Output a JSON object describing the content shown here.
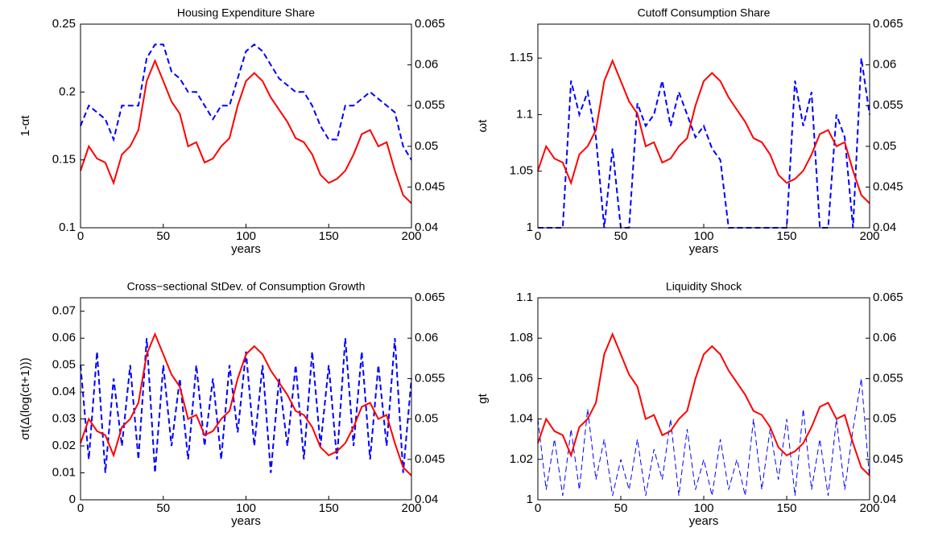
{
  "chart_data": [
    {
      "type": "line",
      "title": "Housing Expenditure Share",
      "xlabel": "years",
      "ylabel": "1-αt",
      "x": [
        0,
        5,
        10,
        15,
        20,
        25,
        30,
        35,
        40,
        45,
        50,
        55,
        60,
        65,
        70,
        75,
        80,
        85,
        90,
        95,
        100,
        105,
        110,
        115,
        120,
        125,
        130,
        135,
        140,
        145,
        150,
        155,
        160,
        165,
        170,
        175,
        180,
        185,
        190,
        195,
        200
      ],
      "xlim": [
        0,
        200
      ],
      "xticks": [
        0,
        50,
        100,
        150,
        200
      ],
      "ylim": [
        0.1,
        0.25
      ],
      "yticks": [
        0.1,
        0.15,
        0.2,
        0.25
      ],
      "y2lim": [
        0.04,
        0.065
      ],
      "y2ticks": [
        0.04,
        0.045,
        0.05,
        0.055,
        0.06,
        0.065
      ],
      "series": [
        {
          "color": "#0000ff",
          "dashed": true,
          "values": [
            0.175,
            0.19,
            0.185,
            0.18,
            0.165,
            0.19,
            0.19,
            0.19,
            0.225,
            0.235,
            0.235,
            0.215,
            0.21,
            0.2,
            0.2,
            0.19,
            0.18,
            0.19,
            0.19,
            0.21,
            0.23,
            0.235,
            0.23,
            0.22,
            0.21,
            0.205,
            0.2,
            0.2,
            0.19,
            0.175,
            0.165,
            0.165,
            0.19,
            0.19,
            0.195,
            0.2,
            0.195,
            0.19,
            0.185,
            0.16,
            0.15
          ]
        },
        {
          "color": "#ff0000",
          "dashed": false,
          "axis": "y2",
          "values": [
            0.047,
            0.05,
            0.0485,
            0.048,
            0.0455,
            0.049,
            0.05,
            0.052,
            0.058,
            0.0605,
            0.058,
            0.0555,
            0.054,
            0.05,
            0.0505,
            0.048,
            0.0485,
            0.05,
            0.051,
            0.055,
            0.058,
            0.059,
            0.058,
            0.056,
            0.0545,
            0.053,
            0.051,
            0.0505,
            0.049,
            0.0465,
            0.0455,
            0.046,
            0.047,
            0.049,
            0.0515,
            0.052,
            0.05,
            0.0505,
            0.047,
            0.044,
            0.043
          ]
        }
      ]
    },
    {
      "type": "line",
      "title": "Cutoff Consumption Share",
      "xlabel": "years",
      "ylabel": "ωt",
      "x": [
        0,
        5,
        10,
        15,
        20,
        25,
        30,
        35,
        40,
        45,
        50,
        55,
        60,
        65,
        70,
        75,
        80,
        85,
        90,
        95,
        100,
        105,
        110,
        115,
        120,
        125,
        130,
        135,
        140,
        145,
        150,
        155,
        160,
        165,
        170,
        175,
        180,
        185,
        190,
        195,
        200
      ],
      "xlim": [
        0,
        200
      ],
      "xticks": [
        0,
        50,
        100,
        150,
        200
      ],
      "ylim": [
        1,
        1.18
      ],
      "yticks": [
        1,
        1.05,
        1.1,
        1.15
      ],
      "y2lim": [
        0.04,
        0.065
      ],
      "y2ticks": [
        0.04,
        0.045,
        0.05,
        0.055,
        0.06,
        0.065
      ],
      "series": [
        {
          "color": "#0000ff",
          "dashed": true,
          "values": [
            1,
            1,
            1,
            1,
            1.13,
            1.1,
            1.12,
            1.08,
            1,
            1.07,
            1,
            1,
            1.11,
            1.09,
            1.1,
            1.13,
            1.09,
            1.12,
            1.1,
            1.08,
            1.09,
            1.07,
            1.06,
            1,
            1,
            1,
            1,
            1,
            1,
            1,
            1,
            1.13,
            1.09,
            1.12,
            1,
            1,
            1.1,
            1.08,
            1,
            1.15,
            1.1
          ]
        },
        {
          "color": "#ff0000",
          "dashed": false,
          "axis": "y2",
          "values": [
            0.047,
            0.05,
            0.0485,
            0.048,
            0.0455,
            0.049,
            0.05,
            0.052,
            0.058,
            0.0605,
            0.058,
            0.0555,
            0.054,
            0.05,
            0.0505,
            0.048,
            0.0485,
            0.05,
            0.051,
            0.055,
            0.058,
            0.059,
            0.058,
            0.056,
            0.0545,
            0.053,
            0.051,
            0.0505,
            0.049,
            0.0465,
            0.0455,
            0.046,
            0.047,
            0.049,
            0.0515,
            0.052,
            0.05,
            0.0505,
            0.047,
            0.044,
            0.043
          ]
        }
      ]
    },
    {
      "type": "line",
      "title": "Cross−sectional StDev. of Consumption Growth",
      "xlabel": "years",
      "ylabel": "σt(Δ(log(ct+1)))",
      "x": [
        0,
        5,
        10,
        15,
        20,
        25,
        30,
        35,
        40,
        45,
        50,
        55,
        60,
        65,
        70,
        75,
        80,
        85,
        90,
        95,
        100,
        105,
        110,
        115,
        120,
        125,
        130,
        135,
        140,
        145,
        150,
        155,
        160,
        165,
        170,
        175,
        180,
        185,
        190,
        195,
        200
      ],
      "xlim": [
        0,
        200
      ],
      "xticks": [
        0,
        50,
        100,
        150,
        200
      ],
      "ylim": [
        0,
        0.075
      ],
      "yticks": [
        0,
        0.01,
        0.02,
        0.03,
        0.04,
        0.05,
        0.06,
        0.07
      ],
      "y2lim": [
        0.04,
        0.065
      ],
      "y2ticks": [
        0.04,
        0.045,
        0.05,
        0.055,
        0.06,
        0.065
      ],
      "series": [
        {
          "color": "#0000ff",
          "dashed": true,
          "values": [
            0.05,
            0.015,
            0.055,
            0.01,
            0.045,
            0.02,
            0.05,
            0.015,
            0.06,
            0.01,
            0.05,
            0.02,
            0.045,
            0.015,
            0.05,
            0.02,
            0.045,
            0.015,
            0.05,
            0.025,
            0.055,
            0.02,
            0.05,
            0.01,
            0.045,
            0.02,
            0.05,
            0.015,
            0.055,
            0.02,
            0.05,
            0.015,
            0.06,
            0.02,
            0.055,
            0.015,
            0.05,
            0.02,
            0.06,
            0.01,
            0.045
          ]
        },
        {
          "color": "#ff0000",
          "dashed": false,
          "axis": "y2",
          "values": [
            0.047,
            0.05,
            0.0485,
            0.048,
            0.0455,
            0.049,
            0.05,
            0.052,
            0.058,
            0.0605,
            0.058,
            0.0555,
            0.054,
            0.05,
            0.0505,
            0.048,
            0.0485,
            0.05,
            0.051,
            0.055,
            0.058,
            0.059,
            0.058,
            0.056,
            0.0545,
            0.053,
            0.051,
            0.0505,
            0.049,
            0.0465,
            0.0455,
            0.046,
            0.047,
            0.049,
            0.0515,
            0.052,
            0.05,
            0.0505,
            0.047,
            0.044,
            0.043
          ]
        }
      ]
    },
    {
      "type": "line",
      "title": "Liquidity Shock",
      "xlabel": "years",
      "ylabel": "gt",
      "x": [
        0,
        5,
        10,
        15,
        20,
        25,
        30,
        35,
        40,
        45,
        50,
        55,
        60,
        65,
        70,
        75,
        80,
        85,
        90,
        95,
        100,
        105,
        110,
        115,
        120,
        125,
        130,
        135,
        140,
        145,
        150,
        155,
        160,
        165,
        170,
        175,
        180,
        185,
        190,
        195,
        200
      ],
      "xlim": [
        0,
        200
      ],
      "xticks": [
        0,
        50,
        100,
        150,
        200
      ],
      "ylim": [
        1,
        1.1
      ],
      "yticks": [
        1,
        1.02,
        1.04,
        1.06,
        1.08,
        1.1
      ],
      "y2lim": [
        0.04,
        0.065
      ],
      "y2ticks": [
        0.04,
        0.045,
        0.05,
        0.055,
        0.06,
        0.065
      ],
      "series": [
        {
          "color": "#0000ff",
          "dashed": true,
          "thin": true,
          "values": [
            1.04,
            1.005,
            1.03,
            1.002,
            1.035,
            1.005,
            1.045,
            1.01,
            1.03,
            1.002,
            1.02,
            1.005,
            1.03,
            1.002,
            1.025,
            1.01,
            1.04,
            1.002,
            1.035,
            1.005,
            1.02,
            1.002,
            1.03,
            1.005,
            1.02,
            1.002,
            1.04,
            1.005,
            1.035,
            1.01,
            1.04,
            1.002,
            1.045,
            1.005,
            1.03,
            1.002,
            1.04,
            1.005,
            1.035,
            1.06,
            1.01
          ]
        },
        {
          "color": "#ff0000",
          "dashed": false,
          "axis": "y2",
          "values": [
            0.047,
            0.05,
            0.0485,
            0.048,
            0.0455,
            0.049,
            0.05,
            0.052,
            0.058,
            0.0605,
            0.058,
            0.0555,
            0.054,
            0.05,
            0.0505,
            0.048,
            0.0485,
            0.05,
            0.051,
            0.055,
            0.058,
            0.059,
            0.058,
            0.056,
            0.0545,
            0.053,
            0.051,
            0.0505,
            0.049,
            0.0465,
            0.0455,
            0.046,
            0.047,
            0.049,
            0.0515,
            0.052,
            0.05,
            0.0505,
            0.047,
            0.044,
            0.043
          ]
        }
      ]
    }
  ]
}
